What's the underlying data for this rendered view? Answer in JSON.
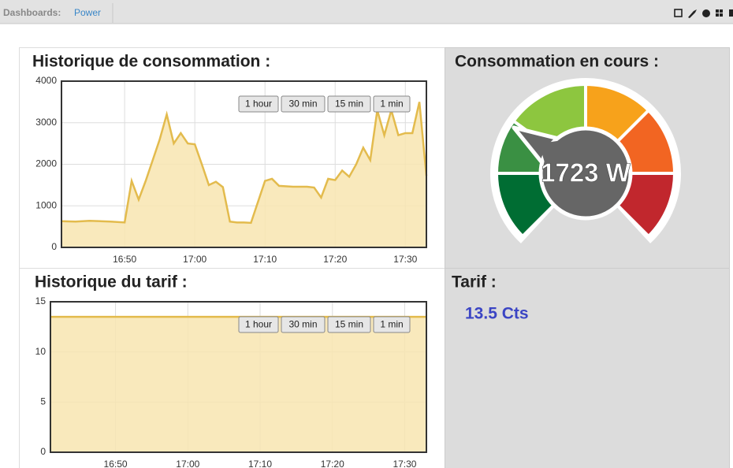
{
  "header": {
    "label": "Dashboards:",
    "dashboard": "Power"
  },
  "chart_data": [
    {
      "type": "line",
      "title": "Historique de consommation :",
      "range_buttons": [
        "1 hour",
        "30 min",
        "15 min",
        "1 min"
      ],
      "x": [
        "16:41",
        "16:43",
        "16:45",
        "16:48",
        "16:50",
        "16:51",
        "16:52",
        "16:53",
        "16:54",
        "16:55",
        "16:56",
        "16:57",
        "16:58",
        "16:59",
        "17:00",
        "17:01",
        "17:02",
        "17:03",
        "17:04",
        "17:05",
        "17:06",
        "17:07",
        "17:08",
        "17:10",
        "17:11",
        "17:12",
        "17:14",
        "17:16",
        "17:17",
        "17:18",
        "17:19",
        "17:20",
        "17:21",
        "17:22",
        "17:23",
        "17:24",
        "17:25",
        "17:26",
        "17:27",
        "17:28",
        "17:29",
        "17:30",
        "17:31",
        "17:32",
        "17:33"
      ],
      "values": [
        630,
        620,
        640,
        620,
        600,
        1600,
        1150,
        1600,
        2100,
        2600,
        3200,
        2500,
        2750,
        2500,
        2480,
        2000,
        1500,
        1580,
        1450,
        620,
        600,
        600,
        590,
        1600,
        1650,
        1480,
        1460,
        1460,
        1440,
        1200,
        1650,
        1620,
        1850,
        1700,
        2000,
        2400,
        2100,
        3300,
        2700,
        3300,
        2700,
        2750,
        2750,
        3500,
        1723
      ],
      "color": "#e3bb4d",
      "fill": "#f8e5b0",
      "xlim": [
        "16:41",
        "17:33"
      ],
      "xticks": [
        "16:50",
        "17:00",
        "17:10",
        "17:20",
        "17:30"
      ],
      "ylim": [
        0,
        4000
      ],
      "yticks": [
        0,
        1000,
        2000,
        3000,
        4000
      ],
      "grid": true
    },
    {
      "type": "line",
      "title": "Historique du tarif :",
      "range_buttons": [
        "1 hour",
        "30 min",
        "15 min",
        "1 min"
      ],
      "x": [
        "16:41",
        "17:33"
      ],
      "values": [
        13.5,
        13.5
      ],
      "color": "#e3bb4d",
      "fill": "#f8e5b0",
      "xlim": [
        "16:41",
        "17:33"
      ],
      "xticks": [
        "16:50",
        "17:00",
        "17:10",
        "17:20",
        "17:30"
      ],
      "ylim": [
        0,
        15
      ],
      "yticks": [
        0,
        5,
        10,
        15
      ],
      "grid": true
    }
  ],
  "gauge": {
    "title": "Consommation en cours :",
    "value": 1723,
    "value_label": "1723 W",
    "min": 0,
    "max": 6000,
    "bands": [
      {
        "from": 0,
        "to": 1000,
        "color": "#006d33"
      },
      {
        "from": 1000,
        "to": 1800,
        "color": "#3a9043"
      },
      {
        "from": 1800,
        "to": 3000,
        "color": "#8dc63f"
      },
      {
        "from": 3000,
        "to": 4000,
        "color": "#f7a21b"
      },
      {
        "from": 4000,
        "to": 5000,
        "color": "#f26522"
      },
      {
        "from": 5000,
        "to": 6000,
        "color": "#c1272d"
      }
    ]
  },
  "tarif": {
    "title": "Tarif :",
    "value": 13.5,
    "value_label": "13.5 Cts"
  }
}
